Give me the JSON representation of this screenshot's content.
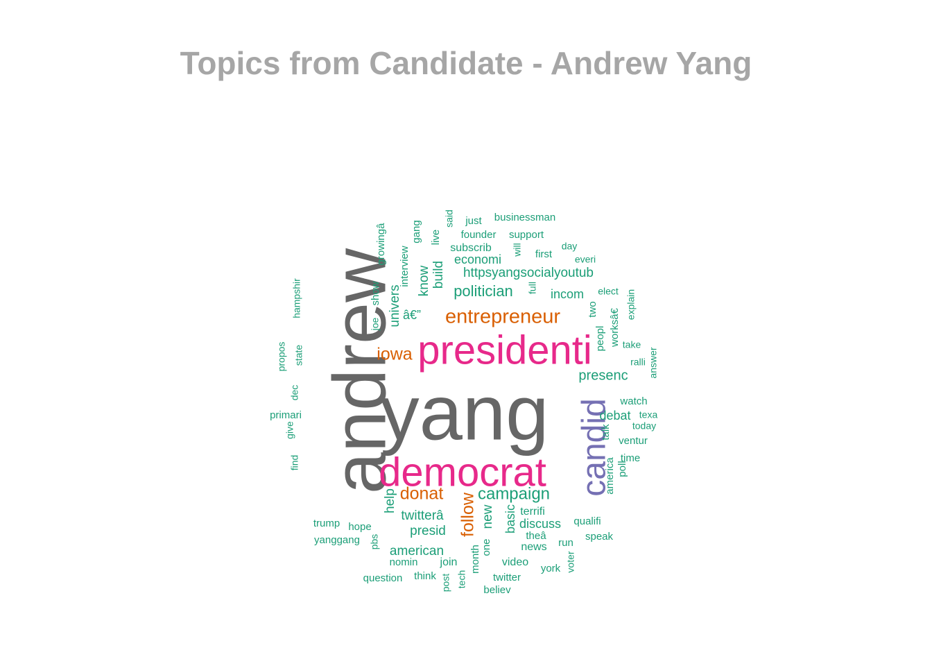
{
  "chart_data": {
    "type": "wordcloud",
    "title": "Topics from Candidate - Andrew Yang",
    "colors": {
      "top": "#666666",
      "high": "#e7298a",
      "candid": "#7570b3",
      "mid": "#d95f02",
      "low": "#1b9e77"
    },
    "words": [
      {
        "text": "yang",
        "weight": 100,
        "group": "top"
      },
      {
        "text": "andrew",
        "weight": 96,
        "group": "top"
      },
      {
        "text": "presidenti",
        "weight": 55,
        "group": "high"
      },
      {
        "text": "democrat",
        "weight": 55,
        "group": "high"
      },
      {
        "text": "candid",
        "weight": 45,
        "group": "candid"
      },
      {
        "text": "entrepreneur",
        "weight": 29,
        "group": "mid"
      },
      {
        "text": "iowa",
        "weight": 25,
        "group": "mid"
      },
      {
        "text": "donat",
        "weight": 25,
        "group": "mid"
      },
      {
        "text": "follow",
        "weight": 25,
        "group": "mid"
      },
      {
        "text": "campaign",
        "weight": 24,
        "group": "low"
      },
      {
        "text": "politician",
        "weight": 22,
        "group": "low"
      },
      {
        "text": "presenc",
        "weight": 20,
        "group": "low"
      },
      {
        "text": "httpsyangsocialyoutub",
        "weight": 19,
        "group": "low"
      },
      {
        "text": "twitterâ",
        "weight": 19,
        "group": "low"
      },
      {
        "text": "presid",
        "weight": 19,
        "group": "low"
      },
      {
        "text": "american",
        "weight": 19,
        "group": "low"
      },
      {
        "text": "economi",
        "weight": 18,
        "group": "low"
      },
      {
        "text": "univers",
        "weight": 19,
        "group": "low"
      },
      {
        "text": "know",
        "weight": 19,
        "group": "low"
      },
      {
        "text": "build",
        "weight": 19,
        "group": "low"
      },
      {
        "text": "help",
        "weight": 19,
        "group": "low"
      },
      {
        "text": "new",
        "weight": 19,
        "group": "low"
      },
      {
        "text": "discuss",
        "weight": 18,
        "group": "low"
      },
      {
        "text": "basic",
        "weight": 18,
        "group": "low"
      },
      {
        "text": "incom",
        "weight": 18,
        "group": "low"
      },
      {
        "text": "debat",
        "weight": 18,
        "group": "low"
      },
      {
        "text": "â€”",
        "weight": 18,
        "group": "low"
      },
      {
        "text": "subscrib",
        "weight": 16,
        "group": "low"
      },
      {
        "text": "founder",
        "weight": 15,
        "group": "low"
      },
      {
        "text": "support",
        "weight": 15,
        "group": "low"
      },
      {
        "text": "businessman",
        "weight": 15,
        "group": "low"
      },
      {
        "text": "just",
        "weight": 15,
        "group": "low"
      },
      {
        "text": "first",
        "weight": 15,
        "group": "low"
      },
      {
        "text": "day",
        "weight": 14,
        "group": "low"
      },
      {
        "text": "everi",
        "weight": 14,
        "group": "low"
      },
      {
        "text": "elect",
        "weight": 14,
        "group": "low"
      },
      {
        "text": "take",
        "weight": 14,
        "group": "low"
      },
      {
        "text": "ralli",
        "weight": 14,
        "group": "low"
      },
      {
        "text": "watch",
        "weight": 15,
        "group": "low"
      },
      {
        "text": "texa",
        "weight": 14,
        "group": "low"
      },
      {
        "text": "today",
        "weight": 14,
        "group": "low"
      },
      {
        "text": "ventur",
        "weight": 15,
        "group": "low"
      },
      {
        "text": "time",
        "weight": 15,
        "group": "low"
      },
      {
        "text": "qualifi",
        "weight": 15,
        "group": "low"
      },
      {
        "text": "speak",
        "weight": 15,
        "group": "low"
      },
      {
        "text": "terrifi",
        "weight": 16,
        "group": "low"
      },
      {
        "text": "theâ",
        "weight": 15,
        "group": "low"
      },
      {
        "text": "news",
        "weight": 16,
        "group": "low"
      },
      {
        "text": "run",
        "weight": 15,
        "group": "low"
      },
      {
        "text": "video",
        "weight": 16,
        "group": "low"
      },
      {
        "text": "york",
        "weight": 15,
        "group": "low"
      },
      {
        "text": "twitter",
        "weight": 15,
        "group": "low"
      },
      {
        "text": "believ",
        "weight": 15,
        "group": "low"
      },
      {
        "text": "join",
        "weight": 16,
        "group": "low"
      },
      {
        "text": "nomin",
        "weight": 15,
        "group": "low"
      },
      {
        "text": "think",
        "weight": 15,
        "group": "low"
      },
      {
        "text": "question",
        "weight": 15,
        "group": "low"
      },
      {
        "text": "hope",
        "weight": 15,
        "group": "low"
      },
      {
        "text": "trump",
        "weight": 15,
        "group": "low"
      },
      {
        "text": "yanggang",
        "weight": 15,
        "group": "low"
      },
      {
        "text": "primari",
        "weight": 15,
        "group": "low"
      },
      {
        "text": "growingâ",
        "weight": 15,
        "group": "low"
      },
      {
        "text": "interview",
        "weight": 15,
        "group": "low"
      },
      {
        "text": "gang",
        "weight": 15,
        "group": "low"
      },
      {
        "text": "live",
        "weight": 15,
        "group": "low"
      },
      {
        "text": "said",
        "weight": 14,
        "group": "low"
      },
      {
        "text": "will",
        "weight": 14,
        "group": "low"
      },
      {
        "text": "full",
        "weight": 14,
        "group": "low"
      },
      {
        "text": "show",
        "weight": 15,
        "group": "low"
      },
      {
        "text": "joe",
        "weight": 14,
        "group": "low"
      },
      {
        "text": "hampshir",
        "weight": 14,
        "group": "low"
      },
      {
        "text": "propos",
        "weight": 14,
        "group": "low"
      },
      {
        "text": "state",
        "weight": 14,
        "group": "low"
      },
      {
        "text": "dec",
        "weight": 14,
        "group": "low"
      },
      {
        "text": "give",
        "weight": 14,
        "group": "low"
      },
      {
        "text": "find",
        "weight": 14,
        "group": "low"
      },
      {
        "text": "two",
        "weight": 15,
        "group": "low"
      },
      {
        "text": "peopl",
        "weight": 15,
        "group": "low"
      },
      {
        "text": "worksâ€",
        "weight": 15,
        "group": "low"
      },
      {
        "text": "explain",
        "weight": 14,
        "group": "low"
      },
      {
        "text": "answer",
        "weight": 14,
        "group": "low"
      },
      {
        "text": "talk",
        "weight": 15,
        "group": "low"
      },
      {
        "text": "america",
        "weight": 15,
        "group": "low"
      },
      {
        "text": "poll",
        "weight": 15,
        "group": "low"
      },
      {
        "text": "month",
        "weight": 15,
        "group": "low"
      },
      {
        "text": "one",
        "weight": 15,
        "group": "low"
      },
      {
        "text": "tech",
        "weight": 14,
        "group": "low"
      },
      {
        "text": "post",
        "weight": 14,
        "group": "low"
      },
      {
        "text": "pbs",
        "weight": 14,
        "group": "low"
      },
      {
        "text": "voter",
        "weight": 14,
        "group": "low"
      }
    ]
  }
}
